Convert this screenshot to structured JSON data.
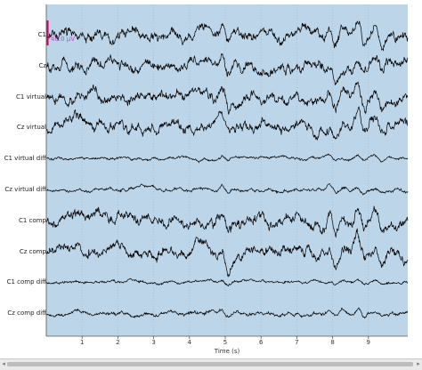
{
  "chart_data": {
    "type": "line",
    "xlabel": "Time (s)",
    "xlim": [
      0,
      10.1
    ],
    "x_ticks": [
      "1",
      "2",
      "3",
      "4",
      "5",
      "6",
      "7",
      "8",
      "9"
    ],
    "x_tick_values": [
      1,
      2,
      3,
      4,
      5,
      6,
      7,
      8,
      9
    ],
    "grid": true,
    "background_color": "#bcd5e9",
    "trace_color": "#000000",
    "scale_bar_color": "#cc0066",
    "scale_bar_label": "40.0 µV",
    "series": [
      {
        "name": "C1",
        "amplitude": 1.0
      },
      {
        "name": "Cz",
        "amplitude": 1.0
      },
      {
        "name": "C1 virtual",
        "amplitude": 1.0
      },
      {
        "name": "Cz virtual",
        "amplitude": 1.0
      },
      {
        "name": "C1 virtual diff",
        "amplitude": 0.25
      },
      {
        "name": "Cz virtual diff",
        "amplitude": 0.3
      },
      {
        "name": "C1 comp",
        "amplitude": 1.0
      },
      {
        "name": "Cz comp",
        "amplitude": 1.0
      },
      {
        "name": "C1 comp diff",
        "amplitude": 0.25
      },
      {
        "name": "Cz comp diff",
        "amplitude": 0.35
      }
    ]
  },
  "scrollbar": {
    "left_icon": "◂",
    "right_icon": "▸"
  }
}
